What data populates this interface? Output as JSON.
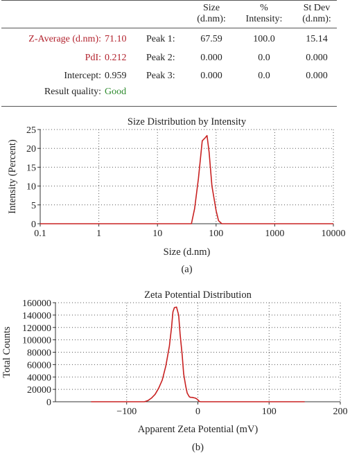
{
  "results": {
    "headers": {
      "size": [
        "Size",
        "(d.nm):"
      ],
      "intensity": [
        "%",
        "Intensity:"
      ],
      "stdev": [
        "St Dev",
        "(d.nm):"
      ]
    },
    "rows": [
      {
        "label": "Z-Average (d.nm):",
        "value": "71.10",
        "peak": "Peak 1:",
        "size": "67.59",
        "intensity": "100.0",
        "stdev": "15.14"
      },
      {
        "label": "PdI:",
        "value": "0.212",
        "peak": "Peak 2:",
        "size": "0.000",
        "intensity": "0.0",
        "stdev": "0.000"
      },
      {
        "label": "Intercept:",
        "value": "0.959",
        "peak": "Peak 3:",
        "size": "0.000",
        "intensity": "0.0",
        "stdev": "0.000"
      }
    ],
    "quality_label": "Result quality:",
    "quality_value": "Good"
  },
  "colors": {
    "curve": "#c82020",
    "highlight": "#b2222d",
    "good": "#2e8b2e"
  },
  "chart_data": [
    {
      "type": "line",
      "title": "Size Distribution by Intensity",
      "xlabel": "Size (d.nm)",
      "ylabel": "Intensity (Percent)",
      "x_scale": "log",
      "xlim": [
        0.1,
        10000
      ],
      "ylim": [
        0,
        25
      ],
      "x_ticks": [
        "0.1",
        "1",
        "10",
        "100",
        "1000",
        "10000"
      ],
      "y_ticks": [
        "0",
        "5",
        "10",
        "15",
        "20",
        "25"
      ],
      "grid": true,
      "caption": "(a)",
      "x": [
        0.1,
        38,
        43,
        50,
        58,
        65,
        70,
        76,
        85,
        100,
        110,
        125,
        10000
      ],
      "y": [
        0,
        0,
        4,
        12,
        22,
        22.8,
        23.4,
        19,
        10,
        3.5,
        0.8,
        0,
        0
      ]
    },
    {
      "type": "line",
      "title": "Zeta Potential Distribution",
      "xlabel": "Apparent Zeta Potential (mV)",
      "ylabel": "Total Counts",
      "xlim": [
        -200,
        200
      ],
      "ylim": [
        0,
        160000
      ],
      "x_ticks": [
        "−100",
        "0",
        "100",
        "200"
      ],
      "y_ticks": [
        "0",
        "20000",
        "40000",
        "60000",
        "80000",
        "100000",
        "120000",
        "140000",
        "160000"
      ],
      "grid": true,
      "caption": "(b)",
      "x": [
        -150,
        -75,
        -70,
        -65,
        -60,
        -55,
        -50,
        -45,
        -40,
        -37,
        -35,
        -33,
        -30,
        -27,
        -25,
        -22,
        -20,
        -17,
        -15,
        -12,
        -10,
        -8,
        -6,
        -4,
        -2,
        0,
        2,
        4,
        150
      ],
      "y": [
        0,
        0,
        2000,
        6000,
        12000,
        22000,
        35000,
        58000,
        90000,
        120000,
        145000,
        152000,
        153000,
        140000,
        110000,
        75000,
        45000,
        25000,
        14000,
        8000,
        7000,
        7000,
        6500,
        6000,
        5000,
        3000,
        500,
        0,
        0
      ]
    }
  ]
}
